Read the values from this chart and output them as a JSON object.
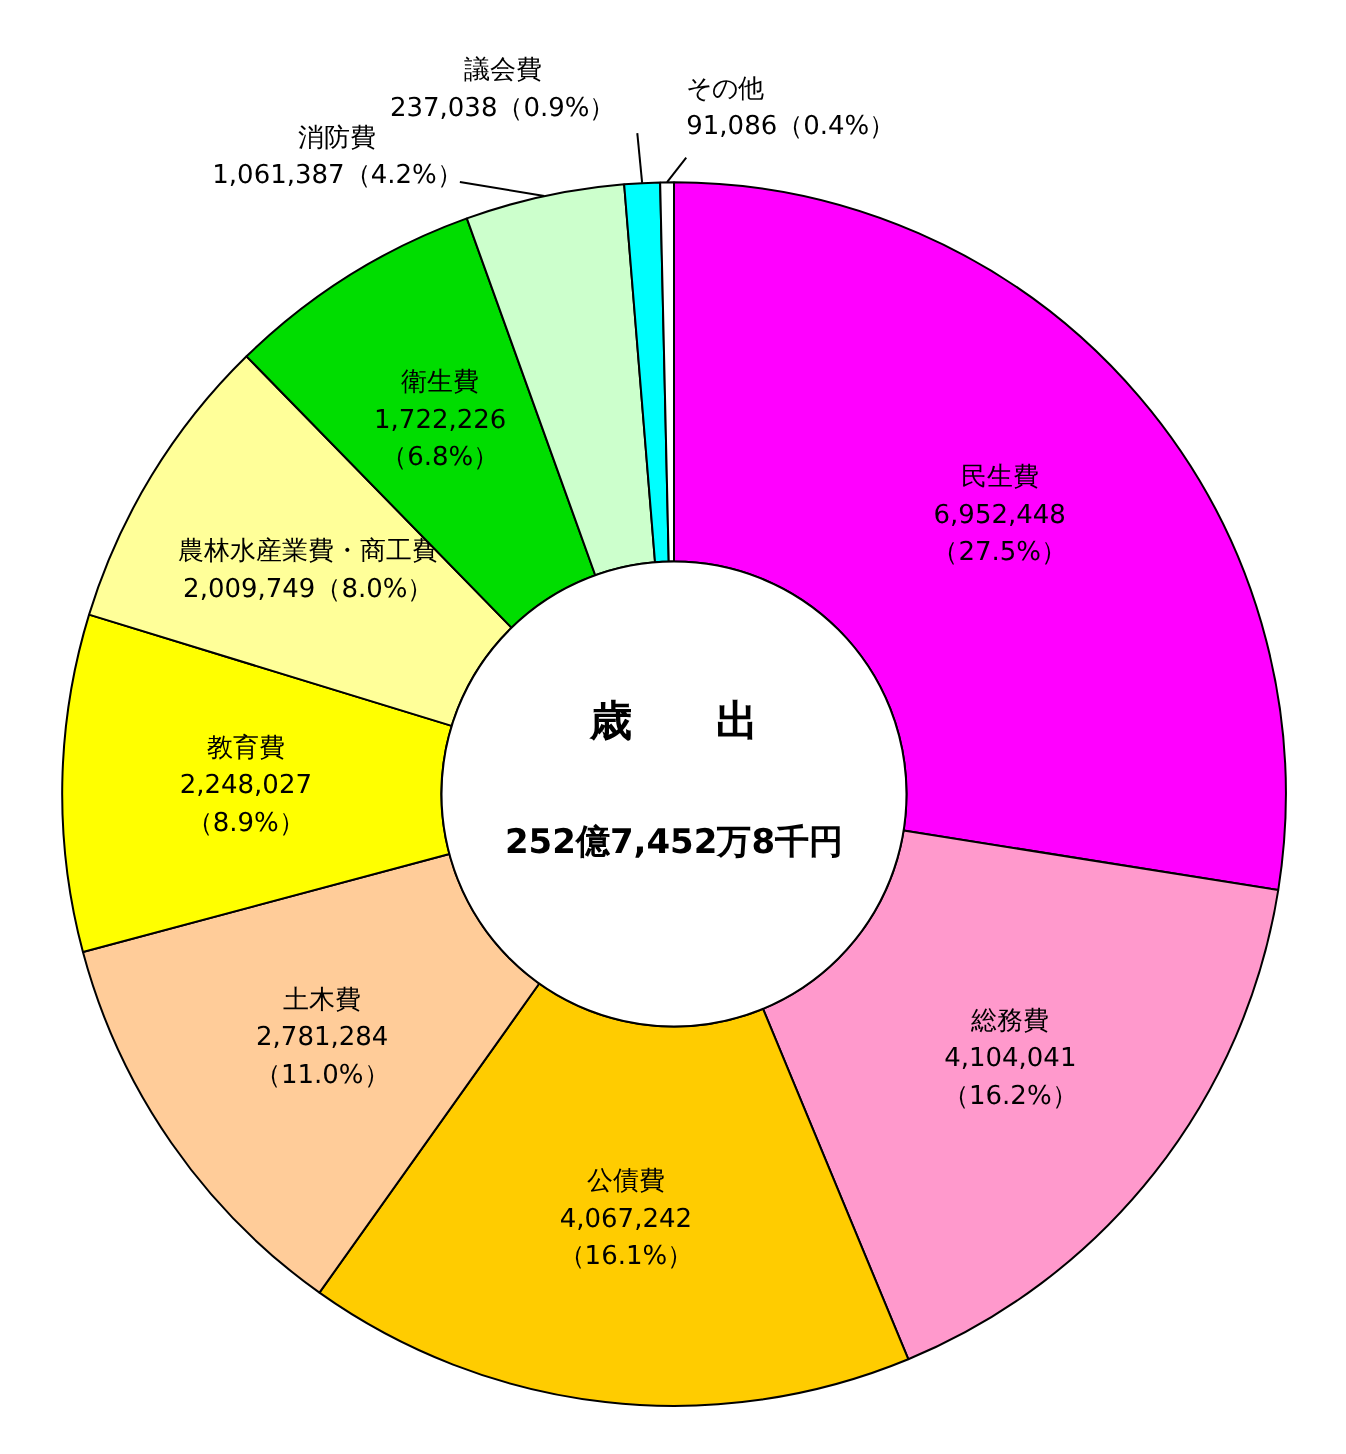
{
  "chart_data": {
    "type": "donut",
    "title": "歳　　出",
    "subtitle": "252億7,452万8千円",
    "categories": [
      "民生費",
      "総務費",
      "公債費",
      "土木費",
      "教育費",
      "農林水産業費・商工費",
      "衛生費",
      "消防費",
      "議会費",
      "その他"
    ],
    "values": [
      6952448,
      4104041,
      4067242,
      2781284,
      2248027,
      2009749,
      1722226,
      1061387,
      237038,
      91086
    ],
    "colors": [
      "#ff00ff",
      "#ff99cc",
      "#ffcc00",
      "#ffcc99",
      "#ffff00",
      "#ffff99",
      "#00dd00",
      "#ccffcc",
      "#00ffff",
      "#ffffff"
    ],
    "value_labels": [
      "6,952,448\n（27.5%）",
      "4,104,041\n（16.2%）",
      "4,067,242\n（16.1%）",
      "2,781,284\n（11.0%）",
      "2,248,027\n（8.9%）",
      "2,009,749（8.0%）",
      "1,722,226\n（6.8%）",
      "1,061,387（4.2%）",
      "237,038（0.9%）",
      "91,086（0.4%）"
    ]
  }
}
